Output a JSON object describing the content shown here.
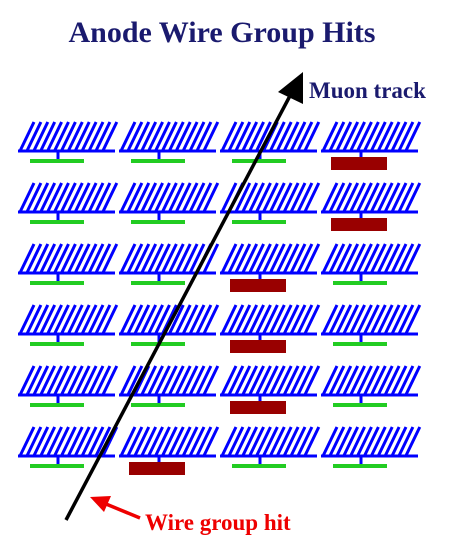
{
  "title": "Anode Wire Group Hits",
  "labels": {
    "track": "Muon track",
    "hit": "Wire group hit"
  },
  "colors": {
    "title": "#1a1a6e",
    "wire": "#0000ff",
    "readout": "#22cc22",
    "hit": "#990000",
    "track": "#000000",
    "hit_label": "#ee0000",
    "arrow": "#ee0000"
  },
  "diagram": {
    "planes": 6,
    "groups_per_plane": 4,
    "hit_groups": [
      3,
      3,
      2,
      2,
      2,
      1
    ]
  },
  "icons": {
    "track_arrowhead": "up-right-arrowhead-icon",
    "hit_pointer": "red-pointer-arrow-icon"
  }
}
